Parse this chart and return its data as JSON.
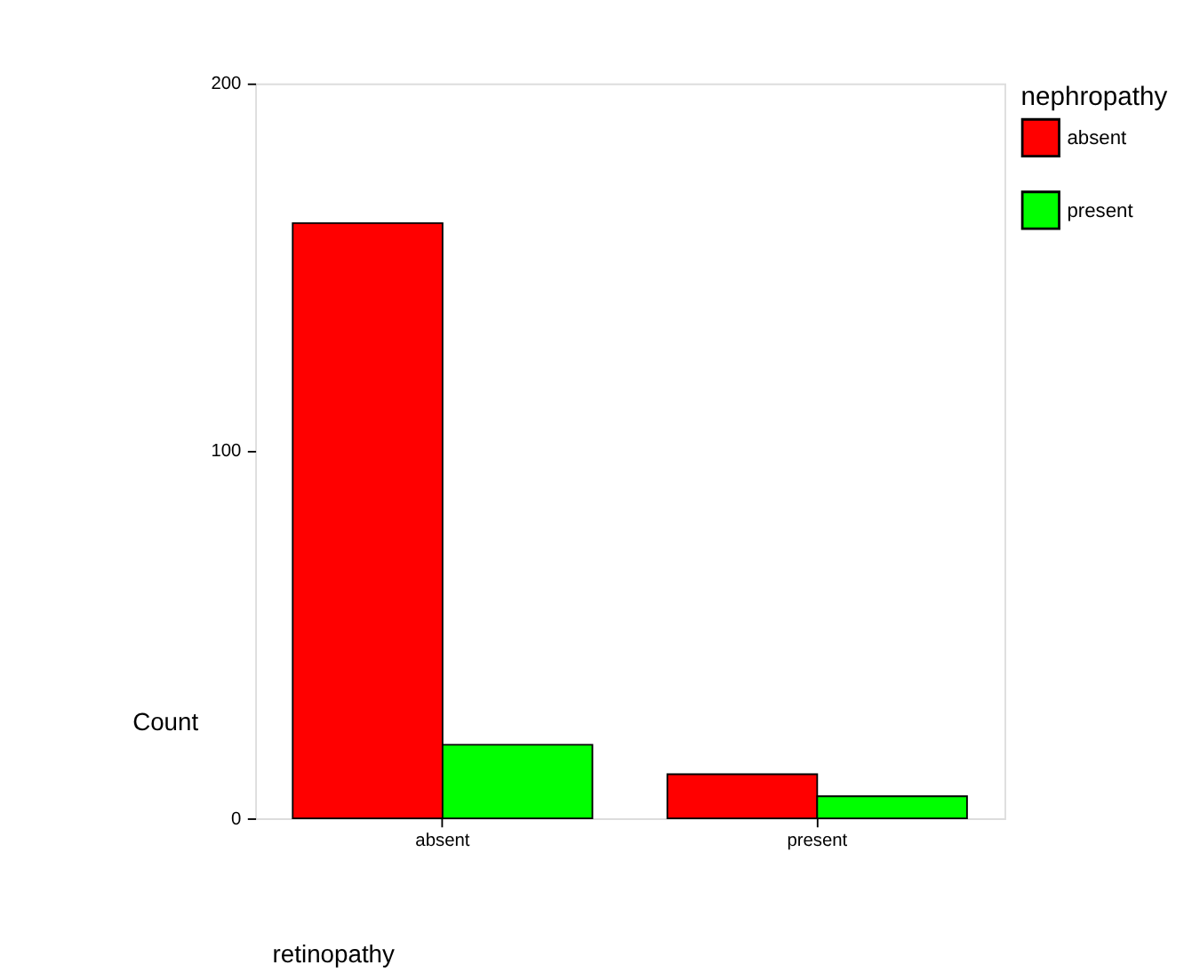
{
  "chart_data": {
    "type": "bar",
    "xlabel": "retinopathy",
    "ylabel": "Count",
    "legend_title": "nephropathy",
    "categories": [
      "absent",
      "present"
    ],
    "series": [
      {
        "name": "absent",
        "color": "#ff0000",
        "values": [
          162,
          12
        ]
      },
      {
        "name": "present",
        "color": "#00ff00",
        "values": [
          20,
          6
        ]
      }
    ],
    "ylim": [
      0,
      200
    ],
    "yticks": [
      0,
      100,
      200
    ],
    "grid": false,
    "legend": "right"
  }
}
